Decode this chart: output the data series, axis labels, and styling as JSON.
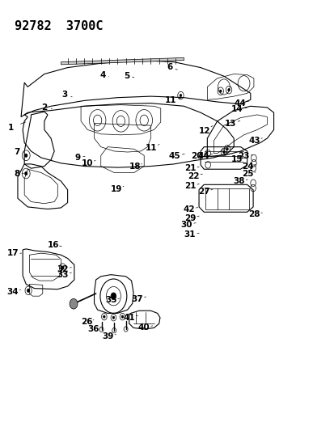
{
  "title": "92782  3700C",
  "bg_color": "#ffffff",
  "line_color": "#000000",
  "title_fontsize": 11,
  "label_fontsize": 7.5,
  "fig_width": 4.14,
  "fig_height": 5.33,
  "dpi": 100
}
